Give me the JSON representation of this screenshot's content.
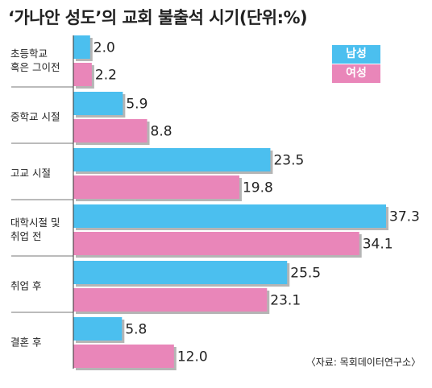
{
  "chart_data": {
    "type": "bar",
    "orientation": "horizontal",
    "title": "‘가나안 성도’의 교회 불출석 시기(단위:%)",
    "categories": [
      [
        "초등학교",
        "혹은 그이전"
      ],
      [
        "중학교 시절"
      ],
      [
        "고교 시절"
      ],
      [
        "대학시절 및",
        "취업 전"
      ],
      [
        "취업 후"
      ],
      [
        "결혼 후"
      ]
    ],
    "series": [
      {
        "name": "남성",
        "color": "#4bbfef",
        "values": [
          2.0,
          5.9,
          23.5,
          37.3,
          25.5,
          5.8
        ]
      },
      {
        "name": "여성",
        "color": "#e986b9",
        "values": [
          2.2,
          8.8,
          19.8,
          34.1,
          23.1,
          12.0
        ]
      }
    ],
    "xlim": [
      0,
      37.3
    ],
    "legend": "top-right",
    "grid": false,
    "source": "〈자료: 목회데이터연구소〉"
  }
}
